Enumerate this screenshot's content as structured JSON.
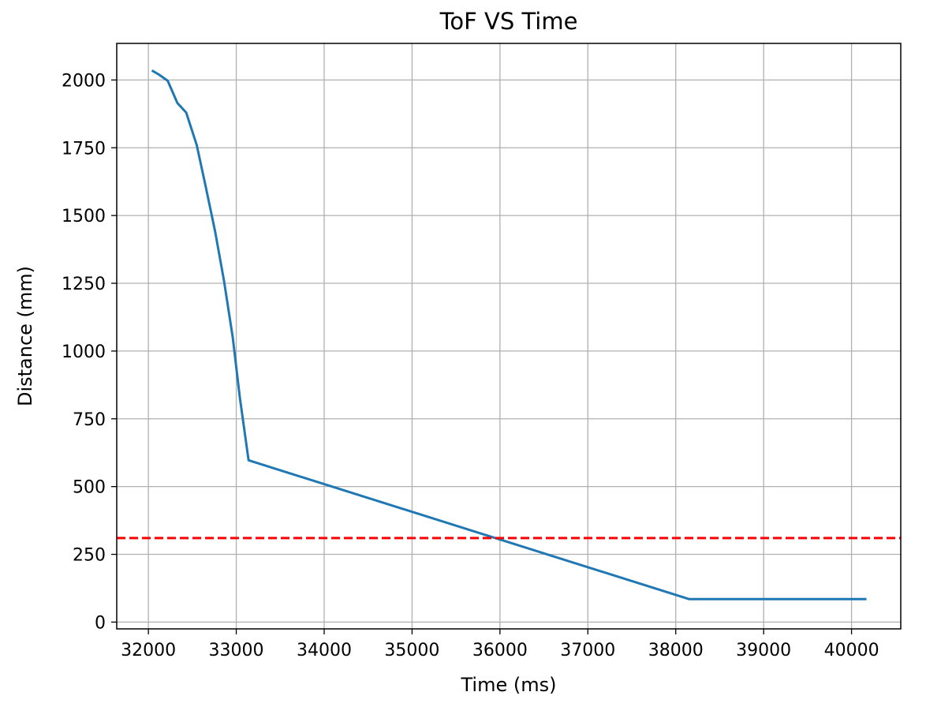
{
  "chart_data": {
    "type": "line",
    "title": "ToF VS Time",
    "xlabel": "Time (ms)",
    "ylabel": "Distance (mm)",
    "xlim": [
      31640,
      40560
    ],
    "ylim": [
      -25,
      2135
    ],
    "xticks": [
      32000,
      33000,
      34000,
      35000,
      36000,
      37000,
      38000,
      39000,
      40000
    ],
    "yticks": [
      0,
      250,
      500,
      750,
      1000,
      1250,
      1500,
      1750,
      2000
    ],
    "grid": true,
    "series": [
      {
        "color": "#1f77b4",
        "x": [
          32040,
          32120,
          32220,
          32330,
          32430,
          32550,
          32650,
          32760,
          32860,
          32960,
          33040,
          33140,
          38150,
          40170
        ],
        "y": [
          2035,
          2020,
          1997,
          1915,
          1880,
          1760,
          1610,
          1440,
          1260,
          1050,
          830,
          597,
          85,
          85
        ]
      },
      {
        "color": "#ff0000",
        "style": "dashed",
        "x": [
          31640,
          40560
        ],
        "y": [
          310,
          310
        ]
      }
    ]
  }
}
